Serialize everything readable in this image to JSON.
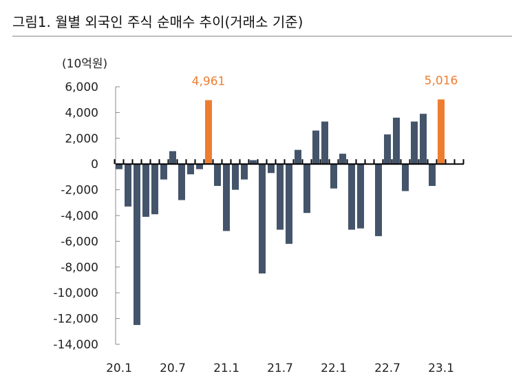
{
  "title": "그림1.   월별 외국인 주식 순매수 추이(거래소 기준)",
  "chart_data": {
    "type": "bar",
    "title": "그림1.   월별 외국인 주식 순매수 추이(거래소 기준)",
    "ylabel": "(10억원)",
    "ylim": [
      -14000,
      6000
    ],
    "yticks": [
      6000,
      4000,
      2000,
      0,
      -2000,
      -4000,
      -6000,
      -8000,
      -10000,
      -12000,
      -14000
    ],
    "ytick_labels": [
      "6,000",
      "4,000",
      "2,000",
      "0",
      "-2,000",
      "-4,000",
      "-6,000",
      "-8,000",
      "-10,000",
      "-12,000",
      "-14,000"
    ],
    "xtick_labels": [
      "20.1",
      "20.7",
      "21.1",
      "21.7",
      "22.1",
      "22.7",
      "23.1"
    ],
    "categories": [
      "20.1",
      "20.2",
      "20.3",
      "20.4",
      "20.5",
      "20.6",
      "20.7",
      "20.8",
      "20.9",
      "20.10",
      "20.11",
      "20.12",
      "21.1",
      "21.2",
      "21.3",
      "21.4",
      "21.5",
      "21.6",
      "21.7",
      "21.8",
      "21.9",
      "21.10",
      "21.11",
      "21.12",
      "22.1",
      "22.2",
      "22.3",
      "22.4",
      "22.5",
      "22.6",
      "22.7",
      "22.8",
      "22.9",
      "22.10",
      "22.11",
      "22.12",
      "23.1"
    ],
    "values": [
      -400,
      -3300,
      -12500,
      -4100,
      -3900,
      -1200,
      1000,
      -2800,
      -800,
      -400,
      4961,
      -1700,
      -5200,
      -2000,
      -1200,
      300,
      -8500,
      -700,
      -5100,
      -6200,
      1100,
      -3800,
      2600,
      3300,
      -1900,
      800,
      -5100,
      -5000,
      -50,
      -5600,
      2300,
      3600,
      -2100,
      3300,
      3900,
      -1700,
      5016
    ],
    "highlight": [
      {
        "category": "20.11",
        "label": "4,961"
      },
      {
        "category": "23.1",
        "label": "5,016"
      }
    ],
    "colors": {
      "bar": "#44546a",
      "highlight": "#ed7d31"
    },
    "grid": false
  }
}
